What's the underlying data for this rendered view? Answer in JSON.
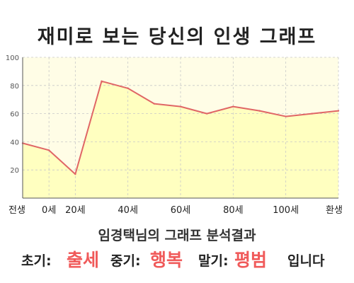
{
  "chart_data": {
    "type": "area",
    "title": "재미로 보는 당신의 인생 그래프",
    "x_ticks": [
      "전생",
      "0세",
      "20세",
      "40세",
      "60세",
      "80세",
      "100세",
      "환생"
    ],
    "points": [
      {
        "x": "전생",
        "y": 39
      },
      {
        "x": "0세",
        "y": 34
      },
      {
        "x": "20세",
        "y": 17
      },
      {
        "x": "30세",
        "y": 83
      },
      {
        "x": "40세",
        "y": 78
      },
      {
        "x": "50세",
        "y": 67
      },
      {
        "x": "60세",
        "y": 65
      },
      {
        "x": "70세",
        "y": 60
      },
      {
        "x": "80세",
        "y": 65
      },
      {
        "x": "90세",
        "y": 62
      },
      {
        "x": "100세",
        "y": 58
      },
      {
        "x": "110세",
        "y": 60
      },
      {
        "x": "환생",
        "y": 62
      }
    ],
    "ylim": [
      0,
      100
    ],
    "y_ticks": [
      20,
      40,
      60,
      80,
      100
    ],
    "grid": true,
    "colors": {
      "line": "#e06666",
      "fill": "#ffffc0",
      "plot_bg": "#fffde6",
      "grid": "#c8c8c8"
    }
  },
  "result": {
    "heading": "임경택님의 그래프 분석결과",
    "early_label": "초기:",
    "early_value": "출세",
    "middle_label": "중기:",
    "middle_value": "행복",
    "late_label": "말기:",
    "late_value": "평범",
    "ending": "입니다",
    "accent_color": "#f05a5a"
  }
}
